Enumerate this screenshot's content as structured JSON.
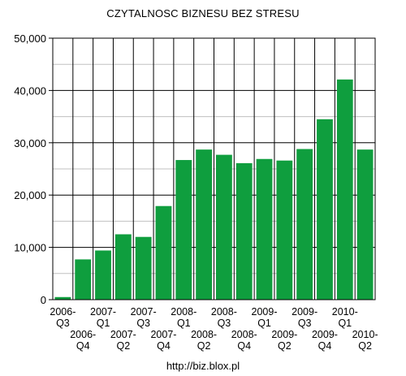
{
  "chart_data": {
    "type": "bar",
    "title": "CZYTALNOSC BIZNESU BEZ STRESU",
    "footer": "http://biz.blox.pl",
    "xlabel": "",
    "ylabel": "",
    "ylim": [
      0,
      50000
    ],
    "yticks": [
      "0",
      "10,000",
      "20,000",
      "30,000",
      "40,000",
      "50,000"
    ],
    "grid": true,
    "bar_color": "#0f9e3e",
    "categories": [
      [
        "2006-",
        "Q3"
      ],
      [
        "2006-",
        "Q4"
      ],
      [
        "2007-",
        "Q1"
      ],
      [
        "2007-",
        "Q2"
      ],
      [
        "2007-",
        "Q3"
      ],
      [
        "2007-",
        "Q4"
      ],
      [
        "2008-",
        "Q1"
      ],
      [
        "2008-",
        "Q2"
      ],
      [
        "2008-",
        "Q3"
      ],
      [
        "2008-",
        "Q4"
      ],
      [
        "2009-",
        "Q1"
      ],
      [
        "2009-",
        "Q2"
      ],
      [
        "2009-",
        "Q3"
      ],
      [
        "2009-",
        "Q4"
      ],
      [
        "2010-",
        "Q1"
      ],
      [
        "2010-",
        "Q2"
      ]
    ],
    "values": [
      500,
      7700,
      9400,
      12500,
      12000,
      17900,
      26700,
      28700,
      27700,
      26100,
      26900,
      26600,
      28800,
      34500,
      42100,
      28700
    ]
  }
}
